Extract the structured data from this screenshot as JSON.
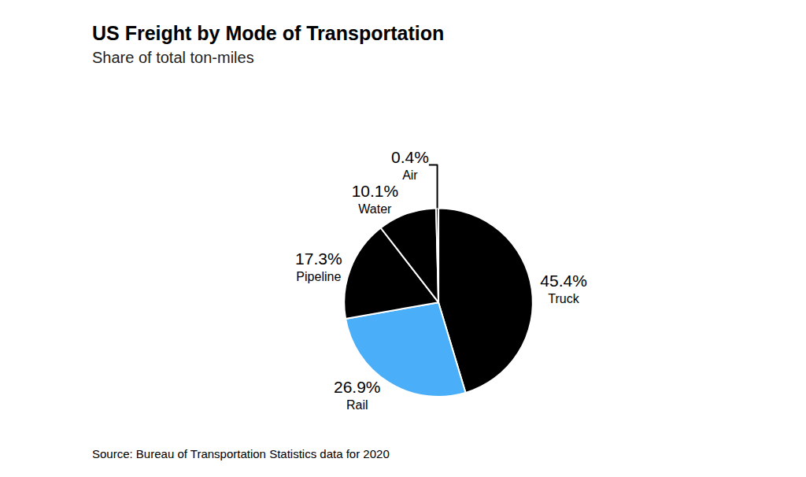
{
  "chart_data": {
    "type": "pie",
    "title": "US Freight by Mode of Transportation",
    "subtitle": "Share of total ton-miles",
    "categories": [
      "Truck",
      "Rail",
      "Pipeline",
      "Water",
      "Air"
    ],
    "values": [
      45.4,
      26.9,
      17.3,
      10.1,
      0.4
    ],
    "value_labels": [
      "45.4%",
      "26.9%",
      "17.3%",
      "10.1%",
      "0.4%"
    ],
    "colors": [
      "#000000",
      "#4aaef8",
      "#000000",
      "#000000",
      "#000000"
    ],
    "data_labels": true,
    "annotations": [
      "Source: Bureau of Transportation Statistics data for 2020"
    ]
  }
}
